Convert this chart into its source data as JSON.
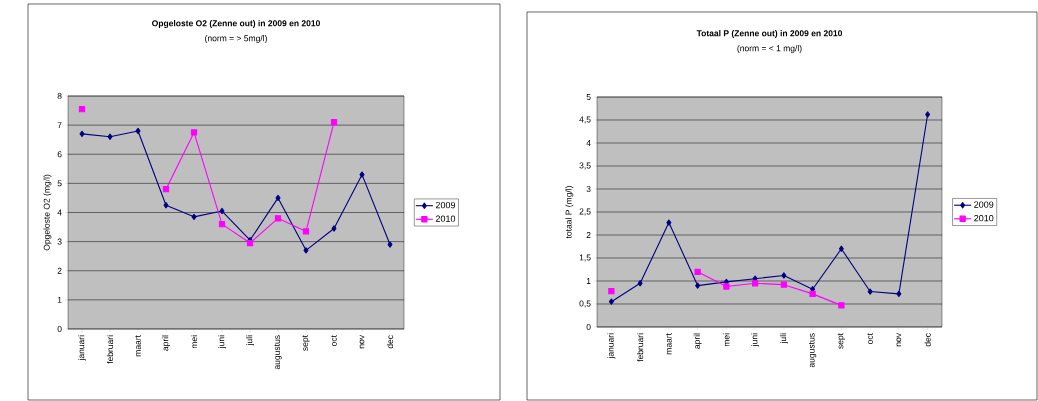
{
  "chart_data": [
    {
      "type": "line",
      "title": "Opgeloste O2 (Zenne out) in 2009 en 2010",
      "subtitle": "(norm = > 5mg/l)",
      "ylabel": "Opgeloste O2 (mg/l)",
      "categories": [
        "januari",
        "februari",
        "maart",
        "april",
        "mei",
        "juni",
        "juli",
        "augustus",
        "sept",
        "oct",
        "nov",
        "dec"
      ],
      "series": [
        {
          "name": "2009",
          "color": "#000080",
          "marker": "diamond",
          "values": [
            6.7,
            6.6,
            6.8,
            4.25,
            3.85,
            4.05,
            3.05,
            4.5,
            2.7,
            3.45,
            5.3,
            2.9
          ]
        },
        {
          "name": "2010",
          "color": "#ff00ff",
          "marker": "square",
          "values": [
            7.55,
            null,
            null,
            4.8,
            6.75,
            3.6,
            2.95,
            3.8,
            3.35,
            7.1,
            null,
            null
          ]
        }
      ],
      "ylim": [
        0,
        8
      ],
      "yticks": [
        0,
        1,
        2,
        3,
        4,
        5,
        6,
        7,
        8
      ],
      "grid": "y",
      "legend": "right"
    },
    {
      "type": "line",
      "title": "Totaal P (Zenne out) in 2009 en 2010",
      "subtitle": "(norm = < 1 mg/l)",
      "ylabel": "totaal P (mg/l)",
      "categories": [
        "januari",
        "februari",
        "maart",
        "april",
        "mei",
        "juni",
        "juli",
        "augustus",
        "sept",
        "oct",
        "nov",
        "dec"
      ],
      "series": [
        {
          "name": "2009",
          "color": "#000080",
          "marker": "diamond",
          "values": [
            0.55,
            0.95,
            2.27,
            0.9,
            0.98,
            1.05,
            1.12,
            0.82,
            1.7,
            0.77,
            0.72,
            4.62
          ]
        },
        {
          "name": "2010",
          "color": "#ff00ff",
          "marker": "square",
          "values": [
            0.78,
            null,
            null,
            1.2,
            0.88,
            0.95,
            0.92,
            0.72,
            0.47,
            null,
            null,
            null
          ]
        }
      ],
      "ylim": [
        0,
        5
      ],
      "yticks": [
        0,
        {
          "value": 0.5,
          "label": "0,5"
        },
        1,
        {
          "value": 1.5,
          "label": "1,5"
        },
        2,
        {
          "value": 2.5,
          "label": "2,5"
        },
        3,
        {
          "value": 3.5,
          "label": "3,5"
        },
        4,
        {
          "value": 4.5,
          "label": "4,5"
        },
        5
      ],
      "grid": "y",
      "legend": "right"
    }
  ]
}
